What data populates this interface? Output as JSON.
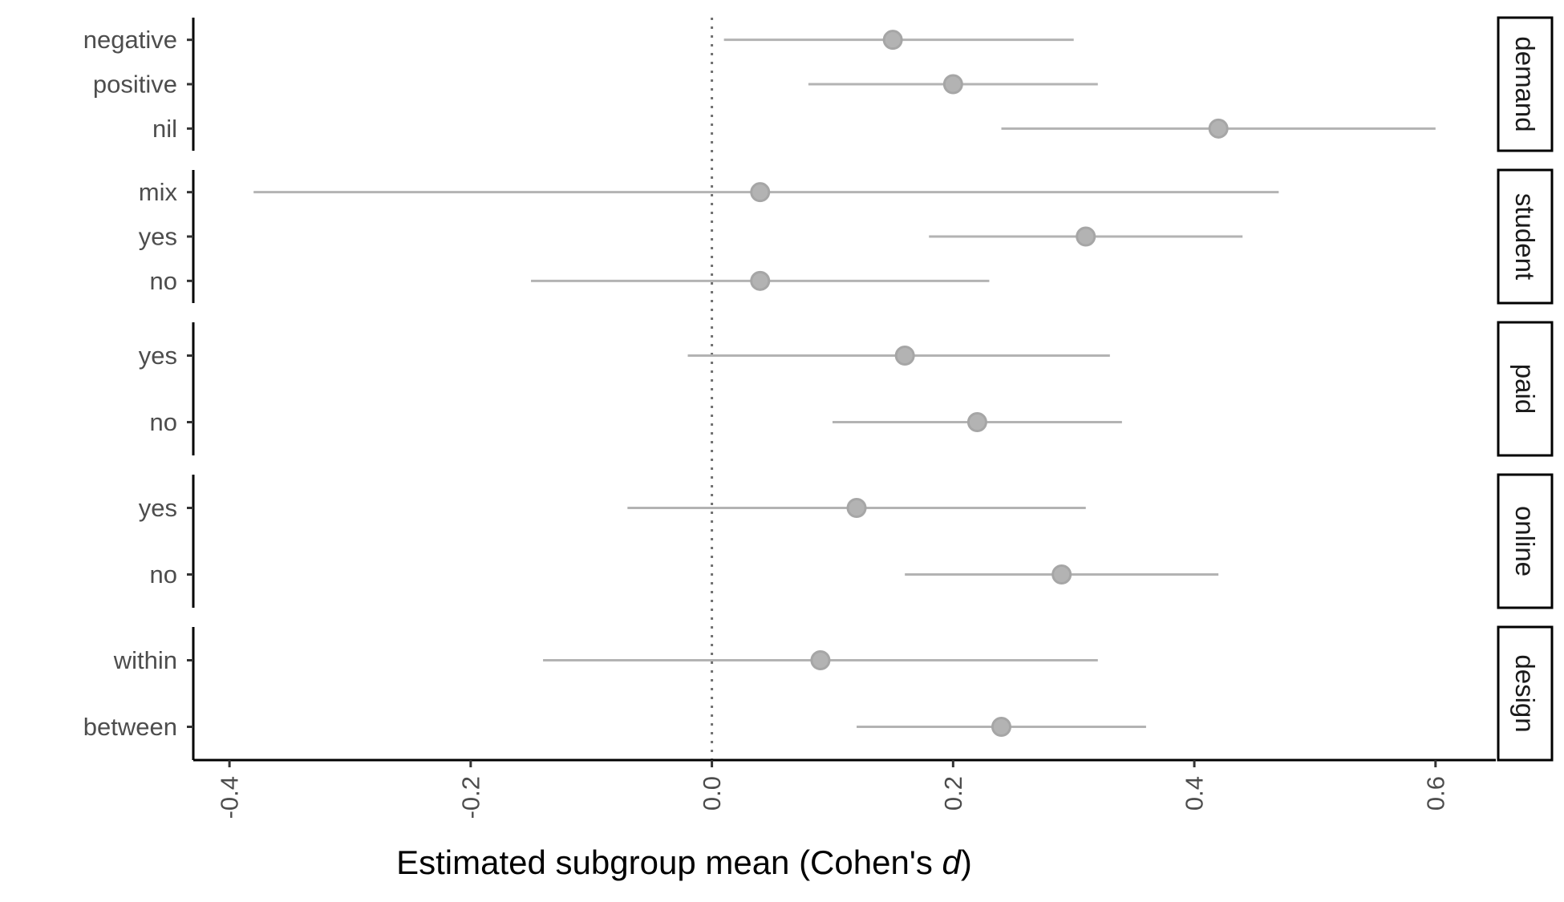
{
  "chart_data": {
    "type": "scatter",
    "subtype": "forest-plot",
    "title": "",
    "xlabel": "Estimated subgroup mean (Cohen's ",
    "xlabel_italic": "d",
    "xlabel_suffix": ")",
    "xlim": [
      -0.43,
      0.65
    ],
    "xticks": [
      -0.4,
      -0.2,
      0.0,
      0.2,
      0.4,
      0.6
    ],
    "xtick_labels": [
      "-0.4",
      "-0.2",
      "0.0",
      "0.2",
      "0.4",
      "0.6"
    ],
    "reference_line": 0,
    "grid": false,
    "point_color": "#b3b3b3",
    "facets": [
      {
        "name": "demand",
        "rows": [
          {
            "label": "negative",
            "estimate": 0.15,
            "lower": 0.01,
            "upper": 0.3
          },
          {
            "label": "positive",
            "estimate": 0.2,
            "lower": 0.08,
            "upper": 0.32
          },
          {
            "label": "nil",
            "estimate": 0.42,
            "lower": 0.24,
            "upper": 0.6
          }
        ]
      },
      {
        "name": "student",
        "rows": [
          {
            "label": "mix",
            "estimate": 0.04,
            "lower": -0.38,
            "upper": 0.47
          },
          {
            "label": "yes",
            "estimate": 0.31,
            "lower": 0.18,
            "upper": 0.44
          },
          {
            "label": "no",
            "estimate": 0.04,
            "lower": -0.15,
            "upper": 0.23
          }
        ]
      },
      {
        "name": "paid",
        "rows": [
          {
            "label": "yes",
            "estimate": 0.16,
            "lower": -0.02,
            "upper": 0.33
          },
          {
            "label": "no",
            "estimate": 0.22,
            "lower": 0.1,
            "upper": 0.34
          }
        ]
      },
      {
        "name": "online",
        "rows": [
          {
            "label": "yes",
            "estimate": 0.12,
            "lower": -0.07,
            "upper": 0.31
          },
          {
            "label": "no",
            "estimate": 0.29,
            "lower": 0.16,
            "upper": 0.42
          }
        ]
      },
      {
        "name": "design",
        "rows": [
          {
            "label": "within",
            "estimate": 0.09,
            "lower": -0.14,
            "upper": 0.32
          },
          {
            "label": "between",
            "estimate": 0.24,
            "lower": 0.12,
            "upper": 0.36
          }
        ]
      }
    ]
  }
}
